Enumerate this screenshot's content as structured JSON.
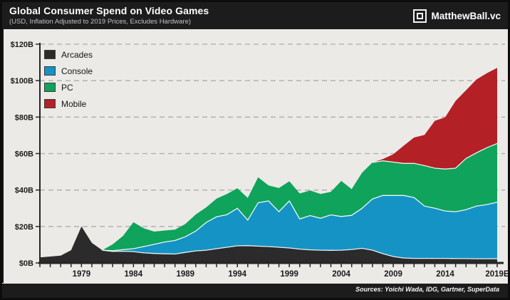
{
  "header": {
    "title": "Global Consumer Spend on Video Games",
    "subtitle": "(USD, Inflation Adjusted to 2019 Prices, Excludes Hardware)",
    "brand": "MatthewBall.vc"
  },
  "footer": {
    "sources": "Sources: Yoichi Wada, IDG, Gartner, SuperData"
  },
  "colors": {
    "header_bg": "#1c1c1c",
    "panel_bg": "#eceae7",
    "gridline": "#adadab",
    "axis": "#262626",
    "boundary_stroke": "#ffffff",
    "arcades": "#2b2b2b",
    "console": "#1593c5",
    "pc": "#0fa35b",
    "mobile": "#b32025"
  },
  "chart_data": {
    "type": "area",
    "stacked": true,
    "title": "Global Consumer Spend on Video Games",
    "subtitle": "(USD, Inflation Adjusted to 2019 Prices, Excludes Hardware)",
    "xlabel": "",
    "ylabel": "",
    "ylim": [
      0,
      120
    ],
    "grid": "dashed-horizontal",
    "legend_position": "top-left",
    "x": [
      1975,
      1976,
      1977,
      1978,
      1979,
      1980,
      1981,
      1982,
      1983,
      1984,
      1985,
      1986,
      1987,
      1988,
      1989,
      1990,
      1991,
      1992,
      1993,
      1994,
      1995,
      1996,
      1997,
      1998,
      1999,
      2000,
      2001,
      2002,
      2003,
      2004,
      2005,
      2006,
      2007,
      2008,
      2009,
      2010,
      2011,
      2012,
      2013,
      2014,
      2015,
      2016,
      2017,
      2018,
      2019
    ],
    "x_tick_years": [
      1979,
      1984,
      1989,
      1994,
      1999,
      2004,
      2009,
      2014,
      2019
    ],
    "x_tick_labels": [
      "1979",
      "1984",
      "1989",
      "1994",
      "1999",
      "2004",
      "2009",
      "2014",
      "2019E"
    ],
    "y_ticks": [
      0,
      20,
      40,
      60,
      80,
      100,
      120
    ],
    "y_tick_labels": [
      "$0B",
      "$20B",
      "$40B",
      "$60B",
      "$80B",
      "$100B",
      "$120B"
    ],
    "units": "USD billions",
    "series": [
      {
        "name": "Arcades",
        "color": "#2b2b2b",
        "values": [
          3,
          3.5,
          4,
          7,
          20,
          11,
          7,
          6.3,
          6.4,
          6.2,
          5.5,
          5.2,
          5,
          4.9,
          5.8,
          6.6,
          7,
          7.8,
          8.6,
          9.4,
          9.5,
          9.2,
          9,
          8.6,
          8.2,
          7.6,
          7.2,
          7,
          6.9,
          7,
          7.4,
          8,
          7,
          5.1,
          3.5,
          2.7,
          2.5,
          2.5,
          2.5,
          2.5,
          2.4,
          2.4,
          2.3,
          2.3,
          2.3
        ]
      },
      {
        "name": "Console",
        "color": "#1593c5",
        "values": [
          0,
          0,
          0,
          0,
          0,
          0,
          0,
          0.4,
          0.9,
          1.6,
          3.5,
          5,
          6.5,
          7.4,
          8.6,
          10.9,
          15.2,
          17.5,
          17.9,
          20.6,
          14,
          23.8,
          25,
          19.5,
          25.8,
          16.5,
          18.8,
          17.5,
          19.5,
          18.5,
          18.7,
          22,
          28.1,
          31.9,
          33.5,
          34.3,
          33.4,
          28.7,
          27.5,
          26,
          25.7,
          26.8,
          28.9,
          29.7,
          31
        ]
      },
      {
        "name": "PC",
        "color": "#0fa35b",
        "values": [
          0,
          0,
          0,
          0,
          0,
          0,
          0,
          3.5,
          7.5,
          14.5,
          10,
          7,
          6.3,
          6,
          7,
          9.1,
          8.3,
          10,
          11.3,
          11,
          12.2,
          14,
          8.5,
          13,
          10.8,
          14,
          13.8,
          13.3,
          12.6,
          19.5,
          14.4,
          19.5,
          20,
          19,
          18.3,
          17.6,
          18.7,
          22.2,
          22,
          23,
          23.9,
          28.1,
          29.2,
          31.2,
          32.2
        ]
      },
      {
        "name": "Mobile",
        "color": "#b32025",
        "values": [
          0,
          0,
          0,
          0,
          0,
          0,
          0,
          0,
          0,
          0,
          0,
          0,
          0,
          0,
          0,
          0,
          0,
          0,
          0,
          0,
          0,
          0,
          0,
          0,
          0,
          0,
          0,
          0,
          0,
          0,
          0,
          0,
          0,
          1,
          4.3,
          9.7,
          14.2,
          16.8,
          26,
          28.4,
          36.9,
          37.4,
          40.2,
          40.9,
          41.5
        ]
      }
    ]
  }
}
